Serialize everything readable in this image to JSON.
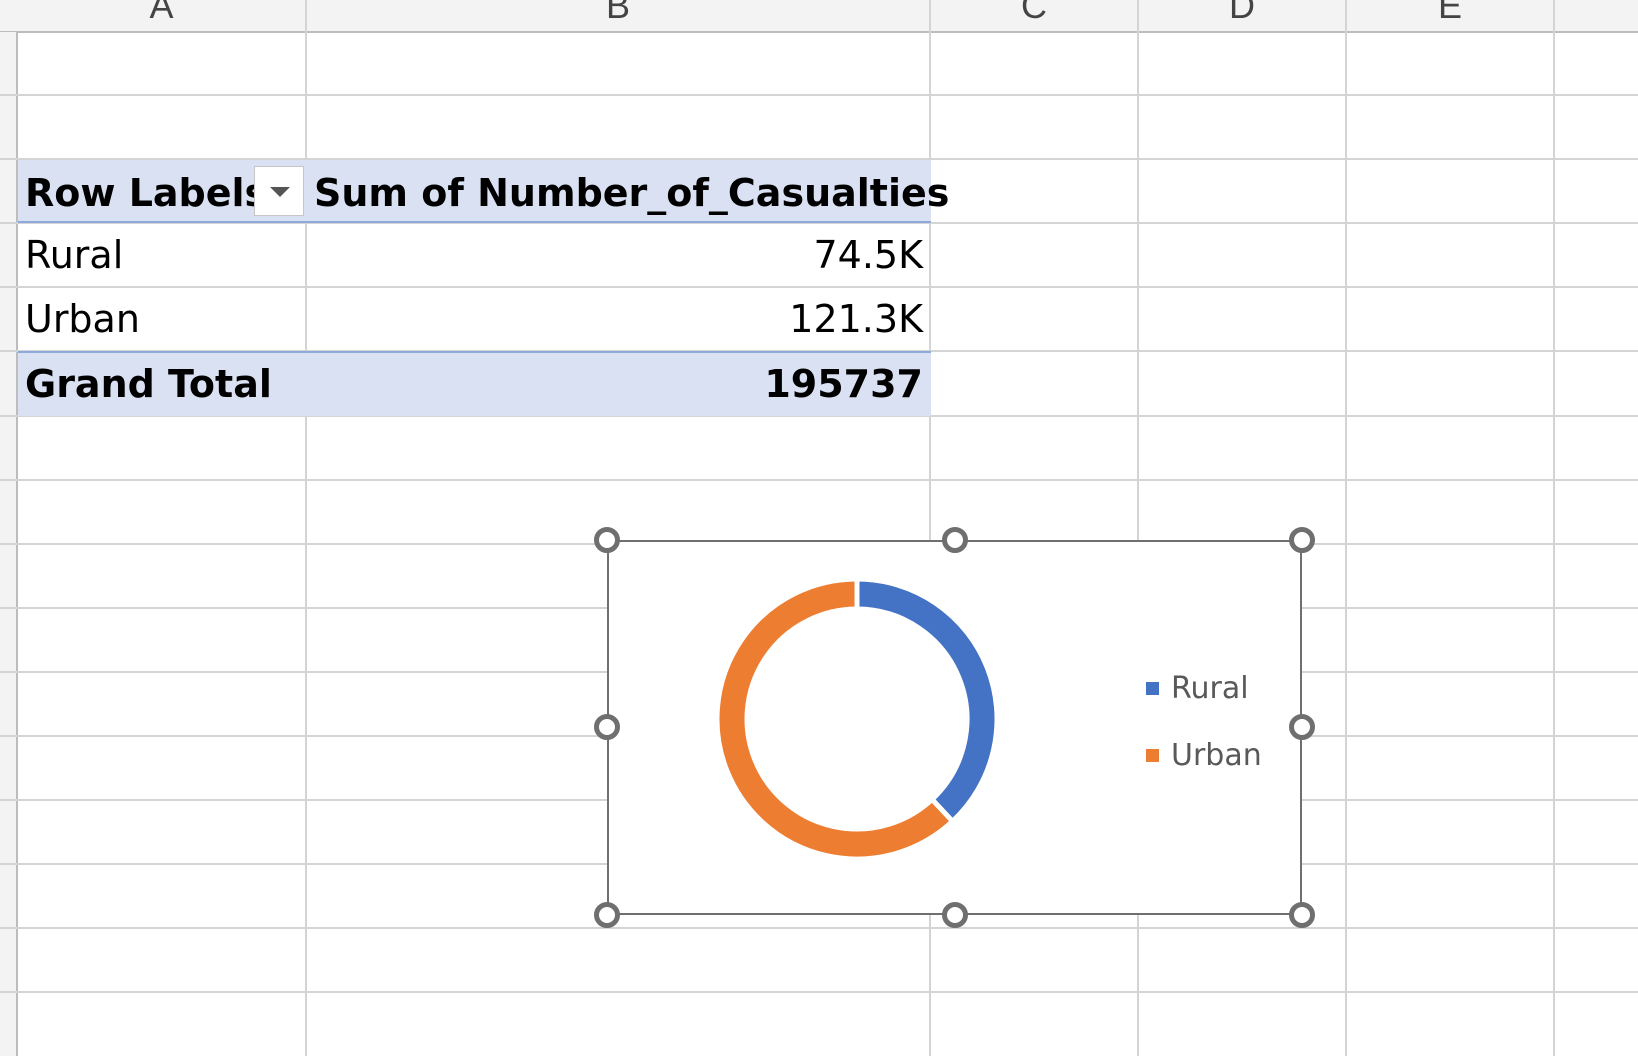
{
  "columns": [
    "A",
    "B",
    "C",
    "D",
    "E"
  ],
  "pivot": {
    "header": {
      "row_labels": "Row Labels",
      "value_header": "Sum of Number_of_Casualties"
    },
    "rows": [
      {
        "label": "Rural",
        "value": "74.5K"
      },
      {
        "label": "Urban",
        "value": "121.3K"
      }
    ],
    "total": {
      "label": "Grand Total",
      "value": "195737"
    }
  },
  "chart_data": {
    "type": "pie",
    "variant": "doughnut",
    "categories": [
      "Rural",
      "Urban"
    ],
    "values": [
      74.5,
      121.3
    ],
    "colors": [
      "#4472c4",
      "#ed7d31"
    ],
    "legend": "right",
    "title": ""
  },
  "icons": {
    "filter": "chevron-down-icon"
  }
}
